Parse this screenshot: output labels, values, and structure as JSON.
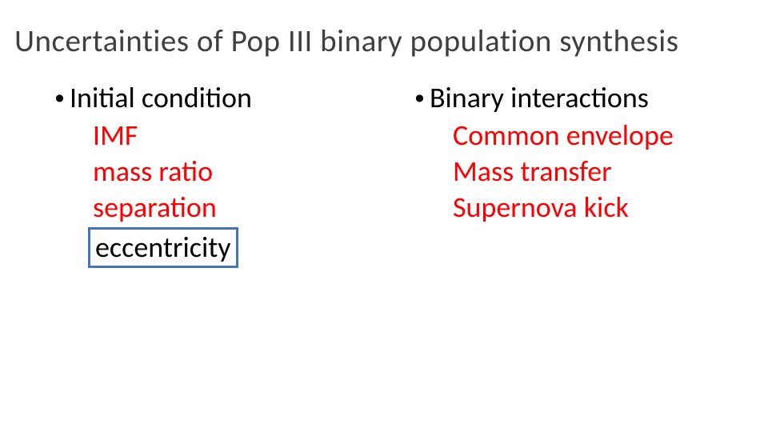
{
  "colors": {
    "title_color": "#3f3f3f",
    "body_color": "#000000",
    "accent_color": "#ff0000",
    "box_border_color": "#4473c5",
    "background": "#ffffff"
  },
  "typography": {
    "title_fontsize_pt": 29,
    "body_fontsize_pt": 27,
    "font_family": "Calibri"
  },
  "title": "Uncertainties of Pop III binary population synthesis",
  "left": {
    "header": "Initial condition",
    "items": [
      "IMF",
      "mass ratio",
      "separation",
      "eccentricity"
    ],
    "boxed_item_index": 3
  },
  "right": {
    "header": "Binary interactions",
    "items": [
      "Common envelope",
      "Mass transfer",
      "Supernova kick"
    ]
  }
}
